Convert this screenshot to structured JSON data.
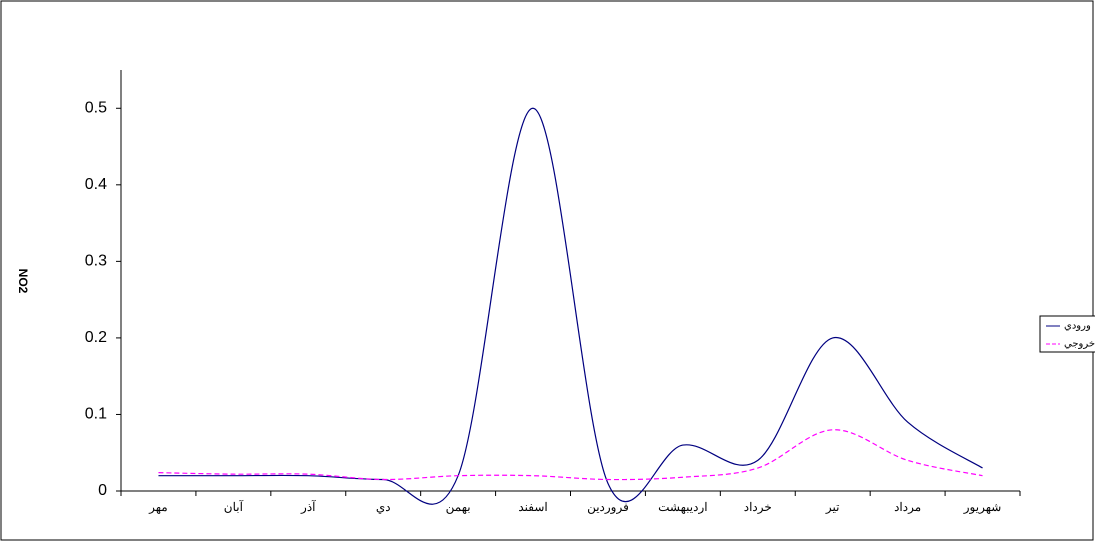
{
  "chart_data": {
    "type": "line",
    "y_label": "NO2",
    "categories": [
      "مهر",
      "آبان",
      "آذر",
      "دي",
      "بهمن",
      "اسفند",
      "فروردين",
      "ارديبهشت",
      "خرداد",
      "تير",
      "مرداد",
      "شهريور"
    ],
    "series": [
      {
        "name": "ورودي",
        "color": "#000080",
        "dash": "solid",
        "values": [
          0.02,
          0.02,
          0.02,
          0.015,
          0.02,
          0.5,
          0.01,
          0.06,
          0.04,
          0.2,
          0.09,
          0.03
        ]
      },
      {
        "name": "خروجي",
        "color": "#ff00ff",
        "dash": "dashed",
        "values": [
          0.024,
          0.022,
          0.022,
          0.015,
          0.02,
          0.02,
          0.015,
          0.018,
          0.03,
          0.08,
          0.04,
          0.02
        ]
      }
    ],
    "ylim": [
      0,
      0.55
    ],
    "yticks": [
      0,
      0.1,
      0.2,
      0.3,
      0.4,
      0.5
    ],
    "smooth": true
  }
}
